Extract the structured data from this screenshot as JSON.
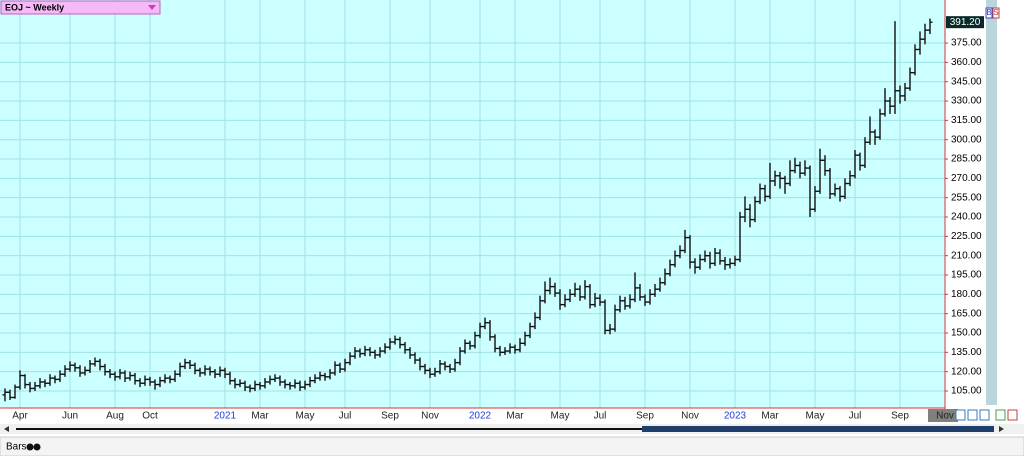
{
  "ui": {
    "title": "EOJ ~ Weekly",
    "footer": "Bars",
    "buttons": [
      "B",
      "S"
    ]
  },
  "chart_data": {
    "type": "ohlc",
    "last_label": "391.20",
    "last_value": 391.2,
    "color": "#111111",
    "grid": true,
    "ylim": [
      91.8,
      408.4
    ],
    "yticks": [
      {
        "value": 105,
        "label": "105.00"
      },
      {
        "value": 120,
        "label": "120.00"
      },
      {
        "value": 135,
        "label": "135.00"
      },
      {
        "value": 150,
        "label": "150.00"
      },
      {
        "value": 165,
        "label": "165.00"
      },
      {
        "value": 180,
        "label": "180.00"
      },
      {
        "value": 195,
        "label": "195.00"
      },
      {
        "value": 210,
        "label": "210.00"
      },
      {
        "value": 225,
        "label": "225.00"
      },
      {
        "value": 240,
        "label": "240.00"
      },
      {
        "value": 255,
        "label": "255.00"
      },
      {
        "value": 270,
        "label": "270.00"
      },
      {
        "value": 285,
        "label": "285.00"
      },
      {
        "value": 300,
        "label": "300.00"
      },
      {
        "value": 315,
        "label": "315.00"
      },
      {
        "value": 330,
        "label": "330.00"
      },
      {
        "value": 345,
        "label": "345.00"
      },
      {
        "value": 360,
        "label": "360.00"
      },
      {
        "value": 375,
        "label": "375.00"
      }
    ],
    "categories": [
      null,
      null,
      null,
      "Apr",
      null,
      null,
      null,
      null,
      null,
      null,
      null,
      null,
      null,
      "Jun",
      null,
      null,
      null,
      null,
      null,
      null,
      null,
      null,
      "Aug",
      null,
      null,
      null,
      null,
      null,
      null,
      "Oct",
      null,
      null,
      null,
      null,
      null,
      null,
      null,
      null,
      null,
      null,
      null,
      null,
      null,
      null,
      "2021",
      null,
      null,
      null,
      null,
      null,
      null,
      "Mar",
      null,
      null,
      null,
      null,
      null,
      null,
      null,
      null,
      "May",
      null,
      null,
      null,
      null,
      null,
      null,
      null,
      "Jul",
      null,
      null,
      null,
      null,
      null,
      null,
      null,
      null,
      "Sep",
      null,
      null,
      null,
      null,
      null,
      null,
      null,
      "Nov",
      null,
      null,
      null,
      null,
      null,
      null,
      null,
      null,
      null,
      "2022",
      null,
      null,
      null,
      null,
      null,
      null,
      "Mar",
      null,
      null,
      null,
      null,
      null,
      null,
      null,
      null,
      "May",
      null,
      null,
      null,
      null,
      null,
      null,
      null,
      "Jul",
      null,
      null,
      null,
      null,
      null,
      null,
      null,
      null,
      "Sep",
      null,
      null,
      null,
      null,
      null,
      null,
      null,
      null,
      "Nov",
      null,
      null,
      null,
      null,
      null,
      null,
      null,
      null,
      "2023",
      null,
      null,
      null,
      null,
      null,
      null,
      "Mar",
      null,
      null,
      null,
      null,
      null,
      null,
      null,
      null,
      "May",
      null,
      null,
      null,
      null,
      null,
      null,
      null,
      "Jul",
      null,
      null,
      null,
      null,
      null,
      null,
      null,
      null,
      "Sep",
      null,
      null,
      null,
      null,
      null,
      null,
      null,
      null,
      "Nov"
    ],
    "ohlc": [
      [
        102,
        107,
        97,
        104
      ],
      [
        104,
        106,
        98,
        100
      ],
      [
        100,
        110,
        99,
        108
      ],
      [
        108,
        121,
        106,
        117
      ],
      [
        117,
        118,
        107,
        110
      ],
      [
        110,
        112,
        104,
        107
      ],
      [
        107,
        112,
        105,
        109
      ],
      [
        109,
        115,
        107,
        112
      ],
      [
        112,
        114,
        108,
        111
      ],
      [
        111,
        118,
        109,
        115
      ],
      [
        115,
        117,
        111,
        114
      ],
      [
        114,
        121,
        112,
        118
      ],
      [
        118,
        125,
        116,
        122
      ],
      [
        122,
        128,
        120,
        125
      ],
      [
        125,
        127,
        120,
        123
      ],
      [
        123,
        125,
        116,
        119
      ],
      [
        119,
        124,
        117,
        121
      ],
      [
        121,
        129,
        119,
        126
      ],
      [
        126,
        131,
        124,
        128
      ],
      [
        128,
        130,
        121,
        124
      ],
      [
        124,
        126,
        117,
        120
      ],
      [
        120,
        122,
        115,
        118
      ],
      [
        118,
        120,
        113,
        116
      ],
      [
        116,
        122,
        114,
        119
      ],
      [
        119,
        121,
        112,
        115
      ],
      [
        115,
        120,
        113,
        117
      ],
      [
        117,
        119,
        110,
        113
      ],
      [
        113,
        115,
        108,
        111
      ],
      [
        111,
        117,
        109,
        114
      ],
      [
        114,
        116,
        109,
        112
      ],
      [
        112,
        114,
        106,
        110
      ],
      [
        110,
        116,
        108,
        113
      ],
      [
        113,
        118,
        111,
        115
      ],
      [
        115,
        117,
        111,
        114
      ],
      [
        114,
        121,
        112,
        118
      ],
      [
        118,
        127,
        116,
        124
      ],
      [
        124,
        130,
        122,
        127
      ],
      [
        127,
        129,
        122,
        125
      ],
      [
        125,
        127,
        118,
        121
      ],
      [
        121,
        123,
        116,
        119
      ],
      [
        119,
        125,
        117,
        122
      ],
      [
        122,
        124,
        117,
        120
      ],
      [
        120,
        122,
        115,
        118
      ],
      [
        118,
        124,
        116,
        121
      ],
      [
        121,
        123,
        115,
        118
      ],
      [
        118,
        120,
        110,
        113
      ],
      [
        113,
        115,
        107,
        110
      ],
      [
        110,
        114,
        108,
        111
      ],
      [
        111,
        113,
        105,
        108
      ],
      [
        108,
        110,
        104,
        107
      ],
      [
        107,
        113,
        105,
        110
      ],
      [
        110,
        112,
        106,
        109
      ],
      [
        109,
        115,
        107,
        112
      ],
      [
        112,
        117,
        110,
        114
      ],
      [
        114,
        118,
        112,
        115
      ],
      [
        115,
        117,
        109,
        112
      ],
      [
        112,
        114,
        107,
        110
      ],
      [
        110,
        112,
        106,
        109
      ],
      [
        109,
        114,
        107,
        111
      ],
      [
        111,
        113,
        105,
        108
      ],
      [
        108,
        113,
        106,
        110
      ],
      [
        110,
        116,
        108,
        113
      ],
      [
        113,
        118,
        111,
        115
      ],
      [
        115,
        120,
        113,
        117
      ],
      [
        117,
        119,
        113,
        116
      ],
      [
        116,
        122,
        114,
        119
      ],
      [
        119,
        128,
        117,
        125
      ],
      [
        125,
        127,
        119,
        122
      ],
      [
        122,
        130,
        120,
        127
      ],
      [
        127,
        135,
        125,
        132
      ],
      [
        132,
        139,
        130,
        136
      ],
      [
        136,
        138,
        131,
        134
      ],
      [
        134,
        140,
        132,
        137
      ],
      [
        137,
        139,
        132,
        135
      ],
      [
        135,
        137,
        130,
        133
      ],
      [
        133,
        139,
        131,
        136
      ],
      [
        136,
        142,
        134,
        139
      ],
      [
        139,
        146,
        137,
        143
      ],
      [
        143,
        148,
        141,
        145
      ],
      [
        145,
        147,
        138,
        141
      ],
      [
        141,
        143,
        134,
        137
      ],
      [
        137,
        139,
        130,
        133
      ],
      [
        133,
        135,
        126,
        129
      ],
      [
        129,
        131,
        121,
        124
      ],
      [
        124,
        126,
        118,
        121
      ],
      [
        121,
        123,
        115,
        118
      ],
      [
        118,
        123,
        116,
        120
      ],
      [
        120,
        129,
        118,
        126
      ],
      [
        126,
        128,
        121,
        124
      ],
      [
        124,
        126,
        119,
        122
      ],
      [
        122,
        130,
        120,
        127
      ],
      [
        127,
        139,
        125,
        136
      ],
      [
        136,
        145,
        134,
        142
      ],
      [
        142,
        144,
        137,
        140
      ],
      [
        140,
        151,
        138,
        148
      ],
      [
        148,
        158,
        146,
        155
      ],
      [
        155,
        162,
        153,
        158
      ],
      [
        158,
        160,
        144,
        147
      ],
      [
        147,
        149,
        135,
        138
      ],
      [
        138,
        140,
        132,
        135
      ],
      [
        135,
        139,
        133,
        136
      ],
      [
        136,
        142,
        134,
        139
      ],
      [
        139,
        141,
        134,
        137
      ],
      [
        137,
        146,
        135,
        142
      ],
      [
        142,
        151,
        140,
        148
      ],
      [
        148,
        158,
        146,
        155
      ],
      [
        155,
        166,
        153,
        162
      ],
      [
        162,
        179,
        160,
        175
      ],
      [
        175,
        190,
        173,
        183
      ],
      [
        183,
        193,
        180,
        186
      ],
      [
        186,
        189,
        178,
        181
      ],
      [
        181,
        184,
        168,
        172
      ],
      [
        172,
        180,
        170,
        176
      ],
      [
        176,
        184,
        174,
        180
      ],
      [
        180,
        189,
        178,
        184
      ],
      [
        184,
        187,
        175,
        178
      ],
      [
        178,
        191,
        176,
        186
      ],
      [
        186,
        188,
        169,
        172
      ],
      [
        172,
        181,
        170,
        177
      ],
      [
        177,
        180,
        171,
        174
      ],
      [
        174,
        176,
        149,
        152
      ],
      [
        152,
        157,
        149,
        153
      ],
      [
        153,
        172,
        151,
        168
      ],
      [
        168,
        179,
        166,
        175
      ],
      [
        175,
        178,
        168,
        171
      ],
      [
        171,
        180,
        169,
        176
      ],
      [
        176,
        197,
        174,
        185
      ],
      [
        185,
        188,
        175,
        178
      ],
      [
        178,
        180,
        171,
        174
      ],
      [
        174,
        184,
        172,
        180
      ],
      [
        180,
        188,
        178,
        184
      ],
      [
        184,
        193,
        182,
        189
      ],
      [
        189,
        200,
        187,
        196
      ],
      [
        196,
        207,
        194,
        203
      ],
      [
        203,
        214,
        201,
        210
      ],
      [
        210,
        218,
        208,
        214
      ],
      [
        214,
        230,
        212,
        224
      ],
      [
        224,
        226,
        200,
        205
      ],
      [
        205,
        208,
        196,
        201
      ],
      [
        201,
        211,
        199,
        207
      ],
      [
        207,
        214,
        205,
        210
      ],
      [
        210,
        213,
        200,
        204
      ],
      [
        204,
        216,
        202,
        212
      ],
      [
        212,
        215,
        203,
        206
      ],
      [
        206,
        209,
        199,
        203
      ],
      [
        203,
        208,
        200,
        204
      ],
      [
        204,
        210,
        202,
        207
      ],
      [
        207,
        244,
        205,
        240
      ],
      [
        240,
        256,
        236,
        246
      ],
      [
        246,
        250,
        232,
        238
      ],
      [
        238,
        256,
        236,
        252
      ],
      [
        252,
        266,
        250,
        262
      ],
      [
        262,
        265,
        252,
        256
      ],
      [
        256,
        282,
        254,
        268
      ],
      [
        268,
        276,
        264,
        272
      ],
      [
        272,
        275,
        262,
        270
      ],
      [
        270,
        272,
        258,
        266
      ],
      [
        266,
        284,
        264,
        276
      ],
      [
        276,
        286,
        274,
        280
      ],
      [
        280,
        283,
        270,
        274
      ],
      [
        274,
        284,
        272,
        278
      ],
      [
        278,
        280,
        240,
        246
      ],
      [
        246,
        264,
        244,
        260
      ],
      [
        260,
        293,
        258,
        284
      ],
      [
        284,
        288,
        272,
        276
      ],
      [
        276,
        278,
        254,
        258
      ],
      [
        258,
        266,
        256,
        262
      ],
      [
        262,
        264,
        252,
        256
      ],
      [
        256,
        270,
        254,
        266
      ],
      [
        266,
        276,
        264,
        272
      ],
      [
        272,
        292,
        270,
        288
      ],
      [
        288,
        290,
        276,
        280
      ],
      [
        280,
        302,
        278,
        298
      ],
      [
        298,
        318,
        296,
        306
      ],
      [
        306,
        308,
        296,
        302
      ],
      [
        302,
        324,
        300,
        320
      ],
      [
        320,
        340,
        318,
        330
      ],
      [
        330,
        333,
        320,
        326
      ],
      [
        326,
        392,
        320,
        338
      ],
      [
        338,
        342,
        328,
        334
      ],
      [
        334,
        344,
        330,
        340
      ],
      [
        340,
        356,
        338,
        352
      ],
      [
        352,
        374,
        350,
        370
      ],
      [
        370,
        384,
        366,
        378
      ],
      [
        378,
        390,
        374,
        385
      ],
      [
        385,
        394,
        382,
        391.2
      ],
      null,
      null,
      null
    ]
  }
}
